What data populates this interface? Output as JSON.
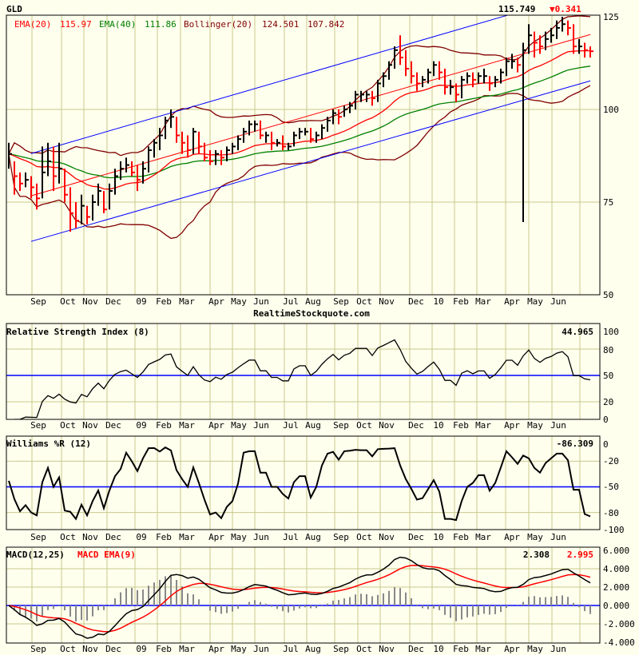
{
  "symbol": "GLD",
  "last_price": "115.749",
  "change": "▼0.341",
  "watermark": "RealtimeStockquote.com",
  "colors": {
    "up": "#000000",
    "down": "#ff0000",
    "ema20": "#ff0000",
    "ema40": "#008000",
    "bollinger": "#800000",
    "channel": "#0000ff",
    "grid": "#c8c88c",
    "background": "#ffffee"
  },
  "legend": {
    "ema20_label": "EMA(20)",
    "ema20_value": "115.97",
    "ema40_label": "EMA(40)",
    "ema40_value": "111.86",
    "bollinger_label": "Bollinger(20)",
    "bollinger_upper": "124.501",
    "bollinger_lower": "107.842"
  },
  "months": [
    "Sep",
    "Oct",
    "Nov",
    "Dec",
    "09",
    "Feb",
    "Mar",
    "Apr",
    "May",
    "Jun",
    "Jul",
    "Aug",
    "Sep",
    "Oct",
    "Nov",
    "Dec",
    "10",
    "Feb",
    "Mar",
    "Apr",
    "May",
    "Jun"
  ],
  "chart_data": [
    {
      "type": "ohlc-bar",
      "title": "GLD",
      "ylim": [
        50,
        125
      ],
      "yticks": [
        "125",
        "100",
        "75",
        "50"
      ],
      "bars_hlc": [
        [
          91,
          84,
          88
        ],
        [
          86,
          77,
          82
        ],
        [
          83,
          78,
          80
        ],
        [
          83,
          79,
          81
        ],
        [
          82,
          76,
          79
        ],
        [
          80,
          73,
          76
        ],
        [
          90,
          76,
          83
        ],
        [
          91,
          82,
          86
        ],
        [
          90,
          78,
          82
        ],
        [
          91,
          80,
          84
        ],
        [
          84,
          75,
          77
        ],
        [
          79,
          67,
          72
        ],
        [
          75,
          68,
          70
        ],
        [
          77,
          69,
          74
        ],
        [
          74,
          69,
          71
        ],
        [
          77,
          70,
          75
        ],
        [
          80,
          74,
          78
        ],
        [
          78,
          72,
          73
        ],
        [
          80,
          73,
          78
        ],
        [
          84,
          77,
          82
        ],
        [
          86,
          81,
          84
        ],
        [
          87,
          83,
          85
        ],
        [
          86,
          82,
          83
        ],
        [
          85,
          78,
          81
        ],
        [
          86,
          80,
          84
        ],
        [
          90,
          83,
          89
        ],
        [
          92,
          87,
          91
        ],
        [
          95,
          89,
          93
        ],
        [
          98,
          92,
          97
        ],
        [
          100,
          95,
          98
        ],
        [
          98,
          91,
          93
        ],
        [
          94,
          88,
          91
        ],
        [
          93,
          87,
          89
        ],
        [
          95,
          88,
          94
        ],
        [
          94,
          88,
          90
        ],
        [
          91,
          86,
          87
        ],
        [
          89,
          85,
          86
        ],
        [
          89,
          85,
          88
        ],
        [
          89,
          85,
          87
        ],
        [
          90,
          86,
          89
        ],
        [
          91,
          88,
          90
        ],
        [
          93,
          89,
          92
        ],
        [
          95,
          91,
          94
        ],
        [
          97,
          93,
          96
        ],
        [
          97,
          94,
          96
        ],
        [
          97,
          92,
          93
        ],
        [
          94,
          91,
          93
        ],
        [
          94,
          89,
          91
        ],
        [
          92,
          90,
          91
        ],
        [
          93,
          89,
          90
        ],
        [
          91,
          89,
          90
        ],
        [
          94,
          90,
          93
        ],
        [
          95,
          92,
          94
        ],
        [
          95,
          93,
          94
        ],
        [
          95,
          91,
          92
        ],
        [
          94,
          91,
          93
        ],
        [
          96,
          92,
          95
        ],
        [
          98,
          94,
          97
        ],
        [
          100,
          96,
          99
        ],
        [
          100,
          96,
          98
        ],
        [
          101,
          98,
          100
        ],
        [
          102,
          99,
          101
        ],
        [
          105,
          100,
          104
        ],
        [
          105,
          102,
          104
        ],
        [
          105,
          102,
          104
        ],
        [
          105,
          101,
          103
        ],
        [
          108,
          102,
          107
        ],
        [
          110,
          106,
          109
        ],
        [
          113,
          108,
          112
        ],
        [
          117,
          111,
          116
        ],
        [
          120,
          112,
          114
        ],
        [
          116,
          109,
          111
        ],
        [
          113,
          107,
          109
        ],
        [
          110,
          105,
          107
        ],
        [
          109,
          106,
          108
        ],
        [
          111,
          107,
          110
        ],
        [
          113,
          109,
          112
        ],
        [
          113,
          108,
          110
        ],
        [
          111,
          104,
          106
        ],
        [
          108,
          104,
          106
        ],
        [
          107,
          102,
          104
        ],
        [
          109,
          103,
          108
        ],
        [
          110,
          107,
          109
        ],
        [
          110,
          106,
          108
        ],
        [
          110,
          107,
          109
        ],
        [
          111,
          107,
          109
        ],
        [
          109,
          105,
          107
        ],
        [
          109,
          106,
          108
        ],
        [
          111,
          107,
          110
        ],
        [
          114,
          109,
          113
        ],
        [
          115,
          111,
          113
        ],
        [
          114,
          110,
          112
        ],
        [
          118,
          69.6,
          116
        ],
        [
          123,
          115,
          120
        ],
        [
          121,
          114,
          118
        ],
        [
          120,
          115,
          117
        ],
        [
          121,
          116,
          119
        ],
        [
          122,
          118,
          120
        ],
        [
          124,
          119,
          122
        ],
        [
          125,
          121,
          123
        ],
        [
          124,
          120,
          122
        ],
        [
          123,
          115,
          117
        ],
        [
          119,
          115,
          117
        ],
        [
          118,
          114,
          116
        ],
        [
          117,
          114,
          115.7
        ]
      ],
      "trend_channel": {
        "upper": [
          88.1,
          131.9
        ],
        "middle": [
          76.7,
          120.2
        ],
        "lower": [
          64.4,
          107.7
        ]
      },
      "overlays": [
        "EMA(20)",
        "EMA(40)",
        "Bollinger(20)"
      ]
    },
    {
      "type": "line",
      "title": "Relative Strength Index (8)",
      "last_value": "44.965",
      "ylim": [
        0,
        100
      ],
      "yticks": [
        "100",
        "80",
        "50",
        "20",
        "0"
      ],
      "reference_line": 50
    },
    {
      "type": "line",
      "title": "Williams %R (12)",
      "last_value": "-86.309",
      "ylim": [
        -100,
        0
      ],
      "yticks": [
        "0",
        "-20",
        "-50",
        "-80",
        "-100"
      ],
      "reference_line": -50
    },
    {
      "type": "line",
      "title": "MACD(12,25)",
      "signal_label": "MACD EMA(9)",
      "last_value": "2.308",
      "signal_last_value": "2.995",
      "ylim": [
        -4,
        6
      ],
      "yticks": [
        "6.000",
        "4.000",
        "2.000",
        "0.000",
        "-2.000",
        "-4.000"
      ],
      "histogram": true
    }
  ]
}
